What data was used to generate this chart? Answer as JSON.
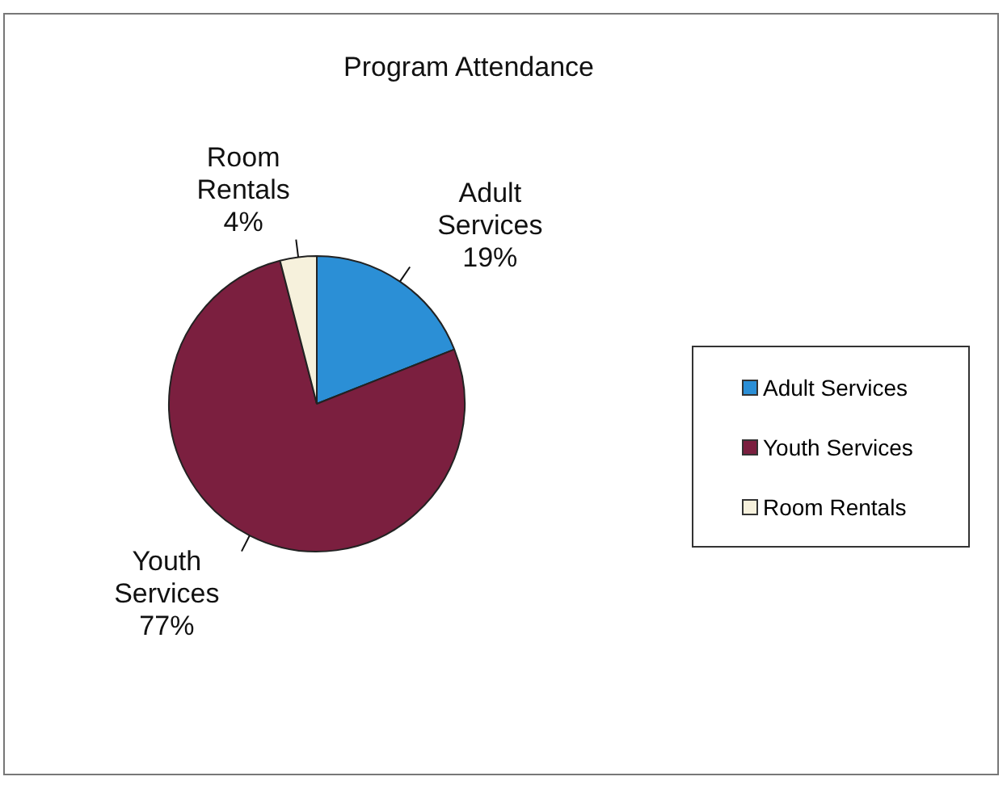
{
  "chart_data": {
    "type": "pie",
    "title": "Program Attendance",
    "categories": [
      "Adult Services",
      "Youth Services",
      "Room Rentals"
    ],
    "values": [
      19,
      77,
      4
    ],
    "value_labels": [
      "19%",
      "77%",
      "4%"
    ],
    "colors": [
      "#2b8fd6",
      "#7b1f3f",
      "#f6f1dc"
    ],
    "legend": "right"
  }
}
